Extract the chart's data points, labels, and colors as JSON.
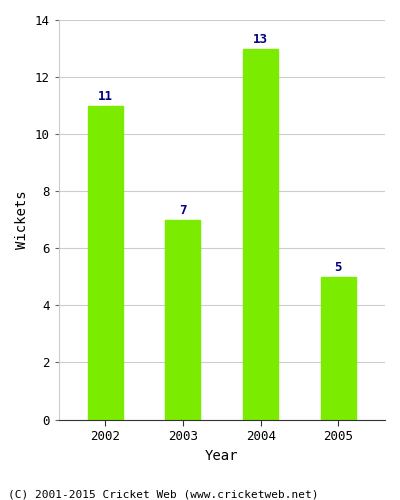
{
  "categories": [
    "2002",
    "2003",
    "2004",
    "2005"
  ],
  "values": [
    11,
    7,
    13,
    5
  ],
  "bar_color": "#7bec00",
  "label_color": "#000080",
  "xlabel": "Year",
  "ylabel": "Wickets",
  "ylim": [
    0,
    14
  ],
  "yticks": [
    0,
    2,
    4,
    6,
    8,
    10,
    12,
    14
  ],
  "grid_color": "#cccccc",
  "background_color": "#ffffff",
  "figure_background": "#ffffff",
  "footer_text": "(C) 2001-2015 Cricket Web (www.cricketweb.net)",
  "label_fontsize": 9,
  "axis_label_fontsize": 10,
  "tick_fontsize": 9,
  "footer_fontsize": 8,
  "bar_width": 0.45
}
